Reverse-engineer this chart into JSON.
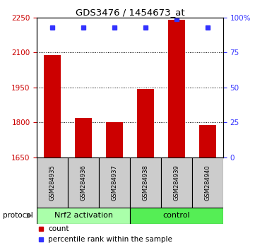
{
  "title": "GDS3476 / 1454673_at",
  "samples": [
    "GSM284935",
    "GSM284936",
    "GSM284937",
    "GSM284938",
    "GSM284939",
    "GSM284940"
  ],
  "bar_values": [
    2090,
    1820,
    1800,
    1945,
    2240,
    1790
  ],
  "percentile_values": [
    93,
    93,
    93,
    93,
    99,
    93
  ],
  "bar_color": "#cc0000",
  "percentile_color": "#3333ff",
  "ylim_left": [
    1650,
    2250
  ],
  "ylim_right": [
    0,
    100
  ],
  "yticks_left": [
    1650,
    1800,
    1950,
    2100,
    2250
  ],
  "yticks_right": [
    0,
    25,
    50,
    75,
    100
  ],
  "ytick_right_labels": [
    "0",
    "25",
    "50",
    "75",
    "100%"
  ],
  "groups": [
    {
      "label": "Nrf2 activation",
      "start": 0,
      "end": 3,
      "color": "#aaffaa"
    },
    {
      "label": "control",
      "start": 3,
      "end": 6,
      "color": "#55ee55"
    }
  ],
  "legend_labels": [
    "count",
    "percentile rank within the sample"
  ],
  "protocol_label": "protocol",
  "tick_label_color_left": "#cc0000",
  "tick_label_color_right": "#3333ff",
  "sample_box_color": "#cccccc",
  "grid_dotted_at": [
    1800,
    1950,
    2100
  ],
  "bar_width": 0.55
}
